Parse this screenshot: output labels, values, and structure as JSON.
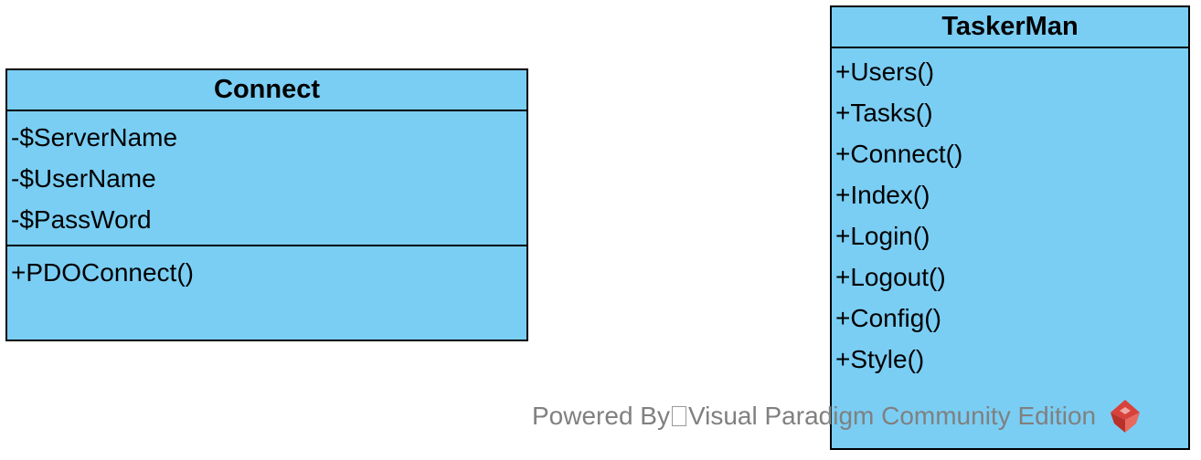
{
  "diagram": {
    "fill_color": "#7ACEF4",
    "border_color": "#000000",
    "classes": {
      "connect": {
        "name": "Connect",
        "attributes": [
          "-$ServerName",
          "-$UserName",
          "-$PassWord"
        ],
        "operations": [
          "+PDOConnect()"
        ]
      },
      "taskerman": {
        "name": "TaskerMan",
        "operations": [
          "+Users()",
          "+Tasks()",
          "+Connect()",
          "+Index()",
          "+Login()",
          "+Logout()",
          "+Config()",
          "+Style()"
        ]
      }
    }
  },
  "watermark": {
    "prefix": "Powered By",
    "product": "Visual Paradigm Community Edition",
    "text_color": "#808080",
    "logo_icon": "visual-paradigm-logo-icon",
    "logo_color": "#D9423A"
  }
}
